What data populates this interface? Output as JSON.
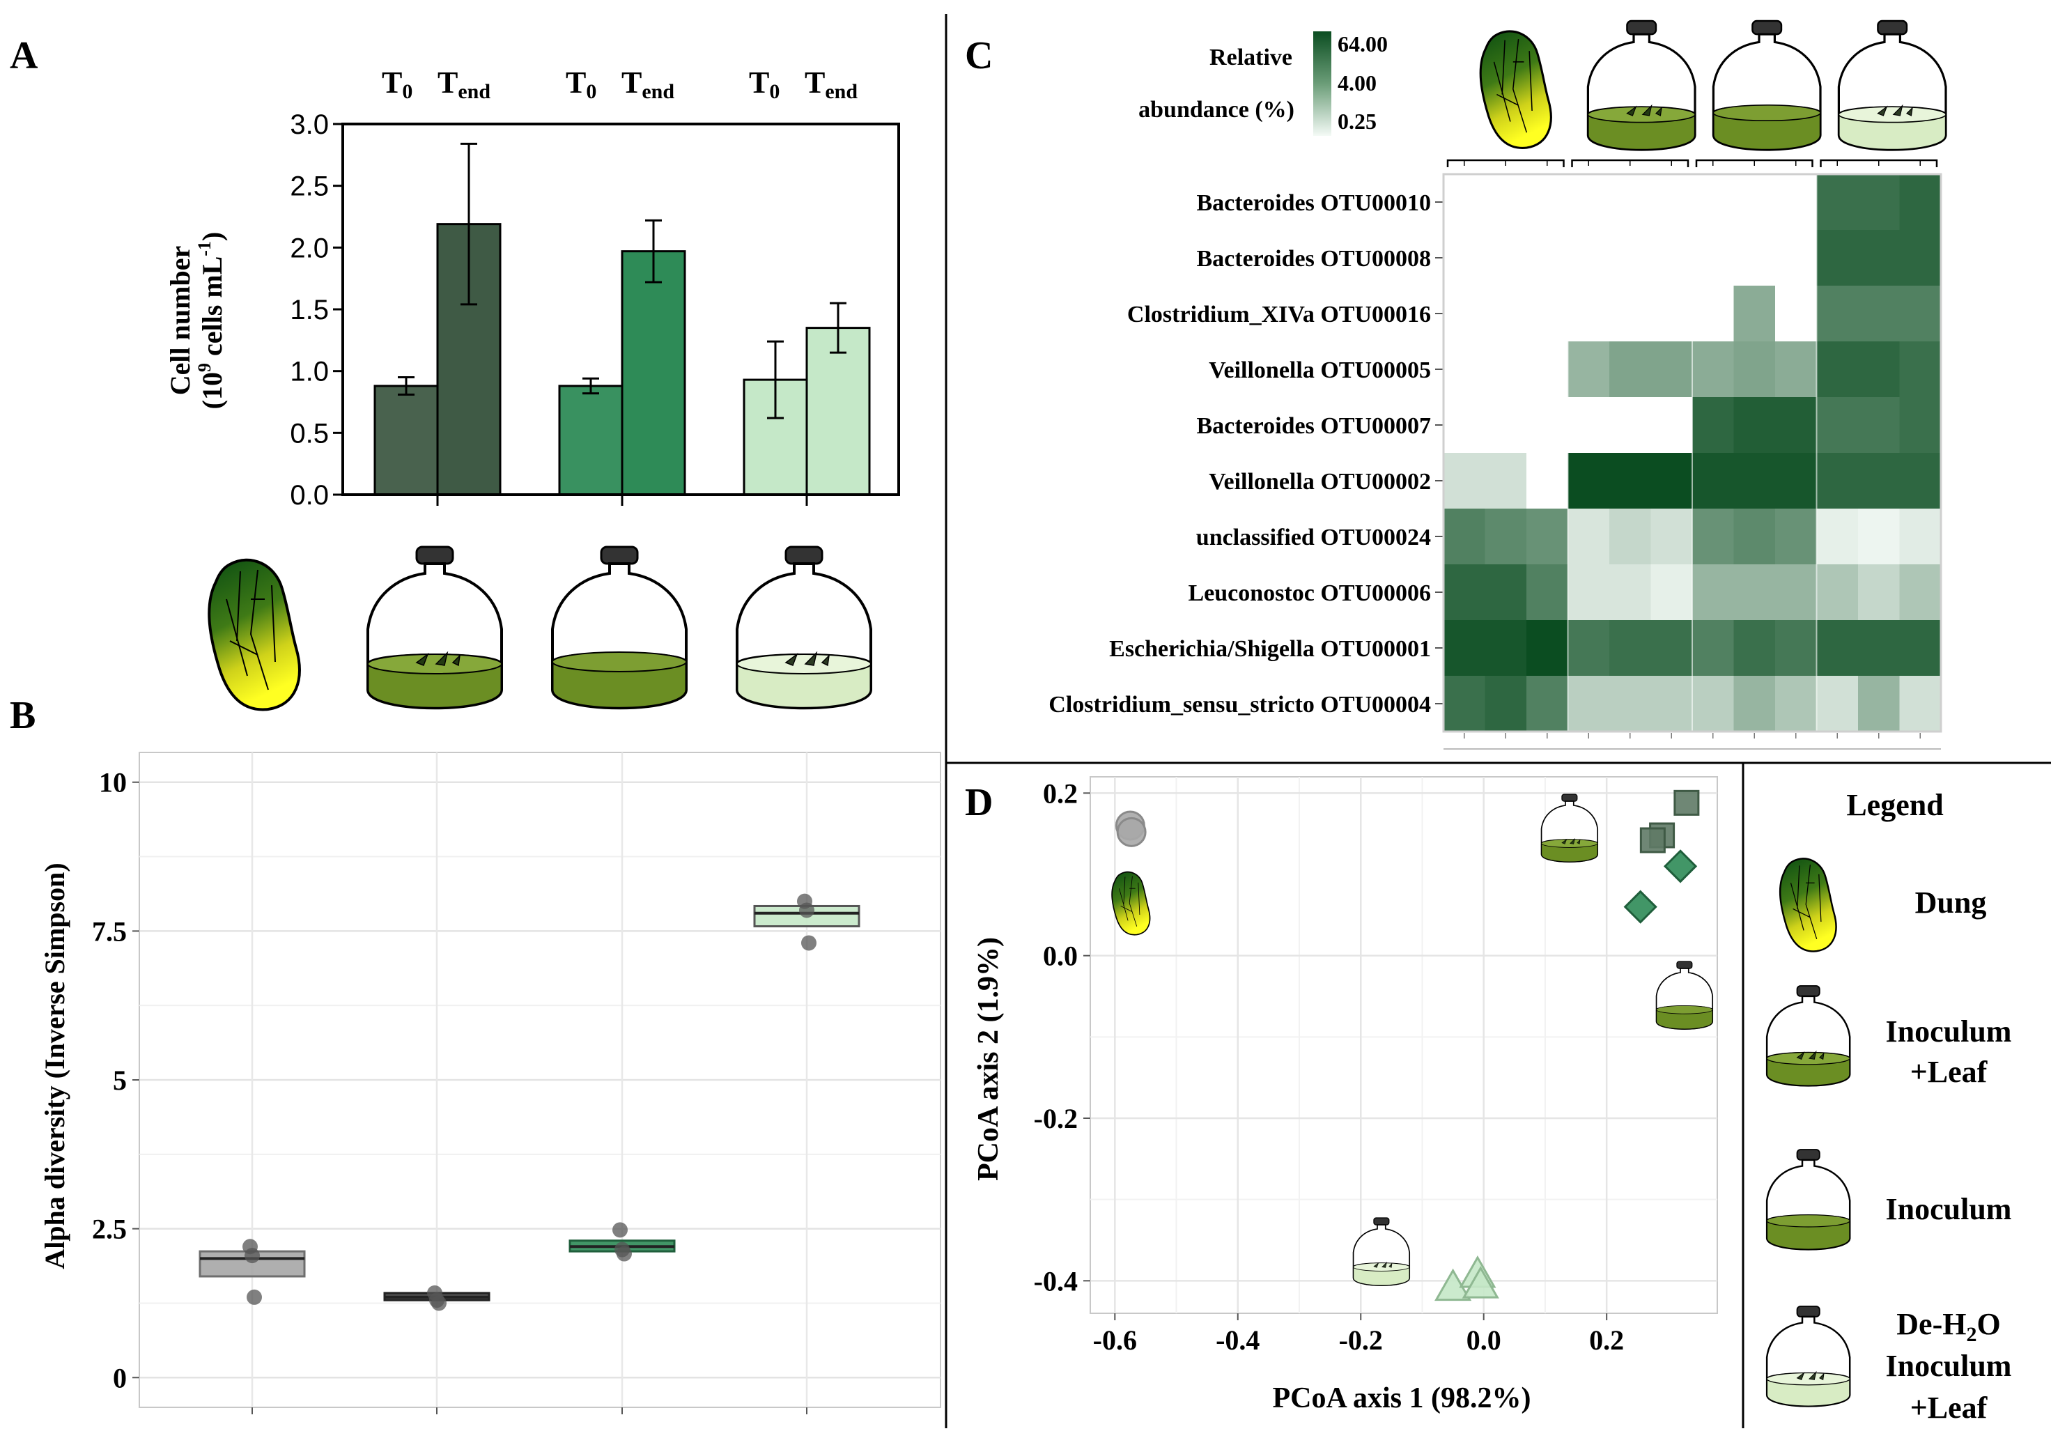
{
  "panels": {
    "A": "A",
    "B": "B",
    "C": "C",
    "D": "D"
  },
  "colors": {
    "dung": "#3f5a45",
    "inoculum_leaf": "#2e8b57",
    "inoculum": "#c5e8c8",
    "deh2o_inoculum_leaf": "#c5e8c8",
    "heat_dark": "#0b4d21"
  },
  "chart_data": [
    {
      "panel": "A",
      "type": "bar",
      "ylabel_line1": "Cell number",
      "ylabel_line2_pre": "(10",
      "ylabel_line2_sup": "9",
      "ylabel_line2_mid": " cells mL",
      "ylabel_line2_sup2": "-1",
      "ylabel_line2_post": ")",
      "ylim": [
        0,
        3.0
      ],
      "yticks": [
        "0.0",
        "0.5",
        "1.0",
        "1.5",
        "2.0",
        "2.5",
        "3.0"
      ],
      "group_headers": [
        {
          "t0": "T",
          "t0_sub": "0",
          "tend": "T",
          "tend_sub": "end"
        },
        {
          "t0": "T",
          "t0_sub": "0",
          "tend": "T",
          "tend_sub": "end"
        },
        {
          "t0": "T",
          "t0_sub": "0",
          "tend": "T",
          "tend_sub": "end"
        }
      ],
      "groups": [
        {
          "name": "Inoculum+Leaf",
          "t0": 0.88,
          "t0_err": 0.07,
          "tend": 2.19,
          "tend_err": 0.65,
          "color": "#3f5a45"
        },
        {
          "name": "Inoculum",
          "t0": 0.88,
          "t0_err": 0.06,
          "tend": 1.97,
          "tend_err": 0.25,
          "color": "#2e8b57"
        },
        {
          "name": "De-H2O Inoculum+Leaf",
          "t0": 0.93,
          "t0_err": 0.31,
          "tend": 1.35,
          "tend_err": 0.2,
          "color": "#c5e8c8"
        }
      ]
    },
    {
      "panel": "B",
      "type": "boxplot",
      "ylabel": "Alpha diversity (Inverse Simpson)",
      "ylim": [
        -0.5,
        10.5
      ],
      "yticks": [
        "0",
        "2.5",
        "5",
        "7.5",
        "10"
      ],
      "ytick_values": [
        0,
        2.5,
        5,
        7.5,
        10
      ],
      "boxes": [
        {
          "name": "Dung",
          "q1": 1.7,
          "median": 2.0,
          "q3": 2.12,
          "points": [
            2.2,
            2.05,
            1.35
          ],
          "fill": "#a6a6a6",
          "line": "#6e6e6e"
        },
        {
          "name": "Inoculum+Leaf",
          "q1": 1.3,
          "median": 1.35,
          "q3": 1.42,
          "points": [
            1.42,
            1.3,
            1.25
          ],
          "fill": "#3b3b3b",
          "line": "#222222"
        },
        {
          "name": "Inoculum",
          "q1": 2.12,
          "median": 2.2,
          "q3": 2.3,
          "points": [
            2.48,
            2.15,
            2.08
          ],
          "fill": "#2e8b57",
          "line": "#1f5e3b"
        },
        {
          "name": "De-H2O Inoculum+Leaf",
          "q1": 7.58,
          "median": 7.8,
          "q3": 7.92,
          "points": [
            8.0,
            7.85,
            7.3
          ],
          "fill": "#c5e8c8",
          "line": "#555555"
        }
      ]
    },
    {
      "panel": "C",
      "type": "heatmap",
      "legend_title_line1": "Relative",
      "legend_title_line2": "abundance (%)",
      "legend_ticks": [
        "64.00",
        "4.00",
        "0.25"
      ],
      "rows": [
        "Bacteroides OTU00010",
        "Bacteroides OTU00008",
        "Clostridium_XIVa OTU00016",
        "Veillonella OTU00005",
        "Bacteroides OTU00007",
        "Veillonella OTU00002",
        "unclassified OTU00024",
        "Leuconostoc OTU00006",
        "Escherichia/Shigella OTU00001",
        "Clostridium_sensu_stricto OTU00004"
      ],
      "column_groups": [
        "Dung",
        "Inoculum+Leaf",
        "Inoculum",
        "De-H2O Inoculum+Leaf"
      ],
      "intensity": [
        [
          0,
          0,
          0,
          0,
          0,
          0,
          0,
          0,
          0,
          0.8,
          0.8,
          0.85
        ],
        [
          0,
          0,
          0,
          0,
          0,
          0,
          0,
          0,
          0,
          0.85,
          0.85,
          0.85
        ],
        [
          0,
          0,
          0,
          0,
          0,
          0,
          0,
          0.45,
          0,
          0.7,
          0.7,
          0.7
        ],
        [
          0,
          0,
          0,
          0.4,
          0.5,
          0.5,
          0.45,
          0.5,
          0.45,
          0.85,
          0.85,
          0.8
        ],
        [
          0,
          0,
          0,
          0,
          0,
          0,
          0.85,
          0.9,
          0.9,
          0.75,
          0.75,
          0.8
        ],
        [
          0.15,
          0.15,
          0,
          1.0,
          1.0,
          1.0,
          0.95,
          0.95,
          0.95,
          0.85,
          0.85,
          0.85
        ],
        [
          0.7,
          0.65,
          0.6,
          0.12,
          0.2,
          0.15,
          0.6,
          0.65,
          0.6,
          0.06,
          0.03,
          0.08
        ],
        [
          0.85,
          0.85,
          0.7,
          0.12,
          0.12,
          0.06,
          0.4,
          0.4,
          0.4,
          0.3,
          0.2,
          0.3
        ],
        [
          0.95,
          0.95,
          1.0,
          0.75,
          0.8,
          0.8,
          0.7,
          0.8,
          0.75,
          0.85,
          0.85,
          0.85
        ],
        [
          0.8,
          0.85,
          0.7,
          0.25,
          0.25,
          0.25,
          0.25,
          0.4,
          0.3,
          0.15,
          0.4,
          0.15
        ]
      ]
    },
    {
      "panel": "D",
      "type": "scatter",
      "xlabel": "PCoA axis 1 (98.2%)",
      "ylabel": "PCoA axis 2 (1.9%)",
      "xlim": [
        -0.64,
        0.38
      ],
      "ylim": [
        -0.44,
        0.22
      ],
      "xticks": [
        "-0.6",
        "-0.4",
        "-0.2",
        "0.0",
        "0.2"
      ],
      "xtick_values": [
        -0.6,
        -0.4,
        -0.2,
        0.0,
        0.2
      ],
      "yticks": [
        "0.2",
        "0.0",
        "-0.2",
        "-0.4"
      ],
      "ytick_values": [
        0.2,
        0.0,
        -0.2,
        -0.4
      ],
      "series": [
        {
          "name": "Dung",
          "shape": "circle",
          "color": "#a9a9a9",
          "stroke": "#8a8a8a",
          "points": [
            [
              -0.575,
              0.16
            ],
            [
              -0.573,
              0.152
            ]
          ]
        },
        {
          "name": "Inoculum+Leaf",
          "shape": "square",
          "color": "#5f7a66",
          "stroke": "#3f5a45",
          "points": [
            [
              0.33,
              0.188
            ],
            [
              0.29,
              0.148
            ],
            [
              0.275,
              0.142
            ]
          ]
        },
        {
          "name": "Inoculum",
          "shape": "diamond",
          "color": "#2e8b57",
          "stroke": "#1f5e3b",
          "points": [
            [
              0.32,
              0.11
            ],
            [
              0.255,
              0.06
            ]
          ]
        },
        {
          "name": "De-H2O Inoculum+Leaf",
          "shape": "triangle",
          "color": "#c5e8c8",
          "stroke": "#8fb892",
          "points": [
            [
              -0.05,
              -0.408
            ],
            [
              -0.01,
              -0.392
            ],
            [
              -0.005,
              -0.405
            ]
          ]
        }
      ]
    }
  ],
  "legend": {
    "title": "Legend",
    "dung": "Dung",
    "inoculum_leaf_1": "Inoculum",
    "inoculum_leaf_2": "+Leaf",
    "inoculum": "Inoculum",
    "deh2o_1_pre": "De-H",
    "deh2o_1_sub": "2",
    "deh2o_1_post": "O",
    "deh2o_2": "Inoculum",
    "deh2o_3": "+Leaf"
  }
}
